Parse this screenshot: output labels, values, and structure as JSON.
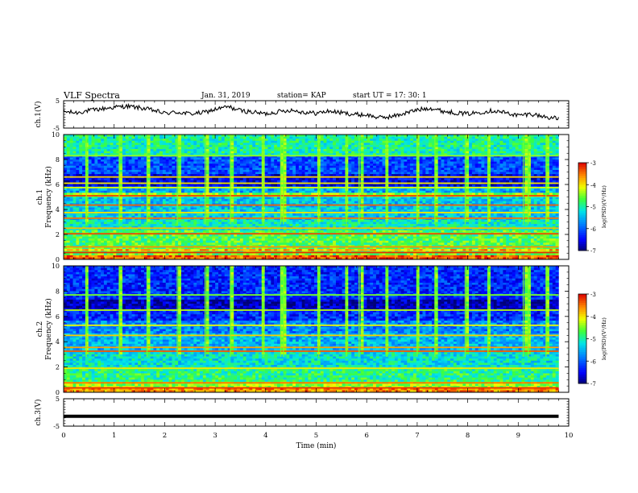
{
  "header": {
    "title": "VLF Spectra",
    "date": "Jan. 31, 2019",
    "station": "station= KAP",
    "start": "start UT =  17: 30: 1"
  },
  "chart_data": [
    {
      "type": "line",
      "name": "ch1-waveform",
      "ylabel": "ch.1(V)",
      "ylim": [
        -5,
        5
      ],
      "y_ticks": [
        5,
        -5
      ],
      "xlim": [
        0,
        10
      ],
      "data_extent_min": 9.8,
      "x": [
        0,
        0.25,
        0.5,
        0.75,
        1.0,
        1.25,
        1.5,
        1.75,
        2.0,
        2.25,
        2.5,
        2.75,
        3.0,
        3.25,
        3.5,
        3.75,
        4.0,
        4.25,
        4.5,
        4.75,
        5.0,
        5.25,
        5.5,
        5.75,
        6.0,
        6.25,
        6.5,
        6.75,
        7.0,
        7.25,
        7.5,
        7.75,
        8.0,
        8.25,
        8.5,
        8.75,
        9.0,
        9.25,
        9.5,
        9.8
      ],
      "values": [
        1.0,
        0.6,
        1.4,
        2.0,
        2.6,
        3.0,
        2.4,
        1.6,
        0.4,
        0.8,
        0.2,
        0.6,
        1.8,
        2.8,
        1.4,
        0.8,
        0.2,
        1.0,
        1.6,
        0.8,
        0.4,
        1.2,
        0.6,
        0.0,
        -0.2,
        -1.2,
        -0.8,
        0.4,
        1.6,
        2.4,
        1.2,
        0.6,
        0.2,
        0.8,
        1.4,
        0.6,
        -0.4,
        0.2,
        -0.8,
        -1.6
      ],
      "color": "#000000"
    },
    {
      "type": "heatmap",
      "name": "ch1-spectrogram",
      "ylabel": "ch.1 Frequency (kHz)",
      "ylim": [
        0,
        10
      ],
      "y_ticks": [
        0,
        2,
        4,
        6,
        8,
        10
      ],
      "xlim": [
        0,
        10
      ],
      "colorbar": {
        "label": "log(PSD)(V²/Hz)",
        "range": [
          -7,
          -3
        ],
        "ticks": [
          -3,
          -4,
          -5,
          -6,
          -7
        ]
      },
      "background_level": -5.2,
      "bands": [
        {
          "from": 0.0,
          "to": 0.3,
          "level": -3.4
        },
        {
          "from": 0.3,
          "to": 0.6,
          "level": -4.6
        },
        {
          "from": 0.6,
          "to": 0.9,
          "level": -3.8
        },
        {
          "from": 0.9,
          "to": 2.3,
          "level": -4.7
        },
        {
          "from": 2.3,
          "to": 3.2,
          "level": -5.1
        },
        {
          "from": 3.2,
          "to": 5.0,
          "level": -5.4
        },
        {
          "from": 5.0,
          "to": 5.3,
          "level": -4.4
        },
        {
          "from": 5.3,
          "to": 5.8,
          "level": -5.6
        },
        {
          "from": 5.8,
          "to": 6.8,
          "level": -6.6
        },
        {
          "from": 6.8,
          "to": 8.4,
          "level": -6.1
        },
        {
          "from": 8.4,
          "to": 10.0,
          "level": -5.0
        }
      ],
      "lines": [
        {
          "freq": 0.55,
          "level": -3.2
        },
        {
          "freq": 1.0,
          "level": -3.6
        },
        {
          "freq": 2.05,
          "level": -3.3
        },
        {
          "freq": 2.5,
          "level": -3.8
        },
        {
          "freq": 3.3,
          "level": -3.5
        },
        {
          "freq": 3.75,
          "level": -4.0
        },
        {
          "freq": 4.35,
          "level": -3.4
        },
        {
          "freq": 5.1,
          "level": -3.3
        },
        {
          "freq": 5.75,
          "level": -4.2
        },
        {
          "freq": 6.1,
          "level": -4.0
        },
        {
          "freq": 6.6,
          "level": -3.9
        },
        {
          "freq": 8.3,
          "level": -4.4
        }
      ],
      "spike_times": [
        0.45,
        1.1,
        1.65,
        2.25,
        2.8,
        3.3,
        3.95,
        4.3,
        4.35,
        5.05,
        5.6,
        5.85,
        6.4,
        7.0,
        7.35,
        7.95,
        8.4,
        9.1,
        9.2,
        9.55
      ]
    },
    {
      "type": "heatmap",
      "name": "ch2-spectrogram",
      "ylabel": "ch.2 Frequency (kHz)",
      "ylim": [
        0,
        10
      ],
      "y_ticks": [
        0,
        2,
        4,
        6,
        8,
        10
      ],
      "xlim": [
        0,
        10
      ],
      "colorbar": {
        "label": "log(PSD)(V²/Hz)",
        "range": [
          -7,
          -3
        ],
        "ticks": [
          -3,
          -4,
          -5,
          -6,
          -7
        ]
      },
      "background_level": -5.3,
      "bands": [
        {
          "from": 0.0,
          "to": 0.4,
          "level": -3.6
        },
        {
          "from": 0.4,
          "to": 0.8,
          "level": -4.4
        },
        {
          "from": 0.8,
          "to": 2.0,
          "level": -4.9
        },
        {
          "from": 2.0,
          "to": 3.2,
          "level": -5.2
        },
        {
          "from": 3.2,
          "to": 4.6,
          "level": -5.5
        },
        {
          "from": 4.6,
          "to": 5.6,
          "level": -5.8
        },
        {
          "from": 5.6,
          "to": 6.5,
          "level": -6.3
        },
        {
          "from": 6.5,
          "to": 7.4,
          "level": -6.8
        },
        {
          "from": 7.4,
          "to": 10.0,
          "level": -6.3
        }
      ],
      "lines": [
        {
          "freq": 0.35,
          "level": -3.2
        },
        {
          "freq": 0.75,
          "level": -3.5
        },
        {
          "freq": 1.9,
          "level": -4.0
        },
        {
          "freq": 3.25,
          "level": -3.4
        },
        {
          "freq": 3.55,
          "level": -3.7
        },
        {
          "freq": 4.5,
          "level": -3.9
        },
        {
          "freq": 5.3,
          "level": -4.1
        },
        {
          "freq": 6.5,
          "level": -4.3
        },
        {
          "freq": 7.7,
          "level": -4.5
        }
      ],
      "spike_times": [
        0.45,
        1.1,
        1.65,
        2.25,
        2.8,
        3.3,
        3.95,
        4.3,
        4.35,
        5.05,
        5.6,
        5.85,
        6.4,
        7.0,
        7.35,
        7.95,
        8.4,
        9.1,
        9.2,
        9.55
      ]
    },
    {
      "type": "line",
      "name": "ch3-waveform",
      "ylabel": "ch.3(V)",
      "ylim": [
        -5,
        5
      ],
      "y_ticks": [
        5,
        -5
      ],
      "xlim": [
        0,
        10
      ],
      "xlabel": "Time (min)",
      "x_ticks": [
        0,
        1,
        2,
        3,
        4,
        5,
        6,
        7,
        8,
        9,
        10
      ],
      "x": [
        0,
        9.8
      ],
      "values": [
        -1.4,
        -1.4
      ],
      "color": "#000000"
    }
  ]
}
